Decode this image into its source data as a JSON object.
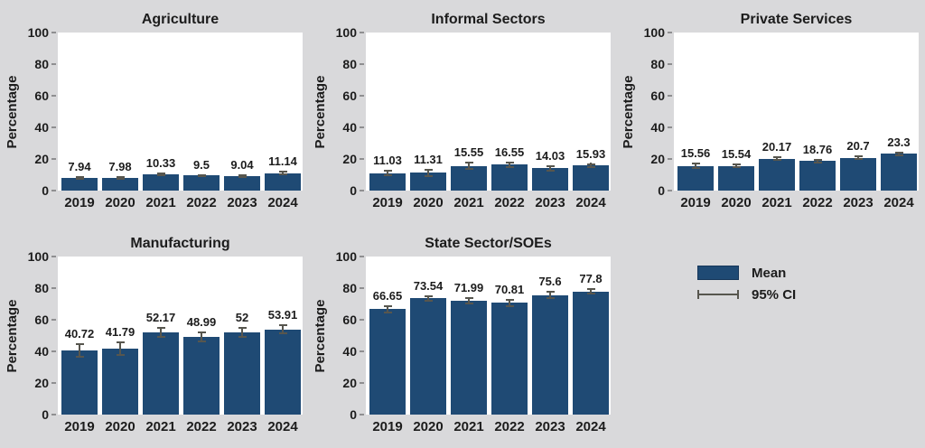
{
  "figure": {
    "background_color": "#d9d9db",
    "plot_background_color": "#ffffff",
    "bar_color": "#1f4a74",
    "error_bar_color": "#57564e",
    "text_color": "#1c1c1c"
  },
  "legend": {
    "mean_label": "Mean",
    "ci_label": "95% CI"
  },
  "chart_data": [
    {
      "type": "bar",
      "title": "Agriculture",
      "xlabel": "",
      "ylabel": "Percentage",
      "ylim": [
        0,
        100
      ],
      "yticks": [
        0,
        20,
        40,
        60,
        80,
        100
      ],
      "grid": false,
      "categories": [
        "2019",
        "2020",
        "2021",
        "2022",
        "2023",
        "2024"
      ],
      "values": [
        7.94,
        7.98,
        10.33,
        9.5,
        9.04,
        11.14
      ],
      "labels": [
        "7.94",
        "7.98",
        "10.33",
        "9.5",
        "9.04",
        "11.14"
      ],
      "ci95_halfwidth": [
        1,
        1,
        1,
        1,
        1,
        1.5
      ]
    },
    {
      "type": "bar",
      "title": "Informal Sectors",
      "xlabel": "",
      "ylabel": "Percentage",
      "ylim": [
        0,
        100
      ],
      "yticks": [
        0,
        20,
        40,
        60,
        80,
        100
      ],
      "grid": false,
      "categories": [
        "2019",
        "2020",
        "2021",
        "2022",
        "2023",
        "2024"
      ],
      "values": [
        11.03,
        11.31,
        15.55,
        16.55,
        14.03,
        15.93
      ],
      "labels": [
        "11.03",
        "11.31",
        "15.55",
        "16.55",
        "14.03",
        "15.93"
      ],
      "ci95_halfwidth": [
        2,
        2.5,
        2.5,
        2,
        2,
        1.5
      ]
    },
    {
      "type": "bar",
      "title": "Private Services",
      "xlabel": "",
      "ylabel": "Percentage",
      "ylim": [
        0,
        100
      ],
      "yticks": [
        0,
        20,
        40,
        60,
        80,
        100
      ],
      "grid": false,
      "categories": [
        "2019",
        "2020",
        "2021",
        "2022",
        "2023",
        "2024"
      ],
      "values": [
        15.56,
        15.54,
        20.17,
        18.76,
        20.7,
        23.3
      ],
      "labels": [
        "15.56",
        "15.54",
        "20.17",
        "18.76",
        "20.7",
        "23.3"
      ],
      "ci95_halfwidth": [
        2,
        1.5,
        1.5,
        1.5,
        1.5,
        1.5
      ]
    },
    {
      "type": "bar",
      "title": "Manufacturing",
      "xlabel": "",
      "ylabel": "Percentage",
      "ylim": [
        0,
        100
      ],
      "yticks": [
        0,
        20,
        40,
        60,
        80,
        100
      ],
      "grid": false,
      "categories": [
        "2019",
        "2020",
        "2021",
        "2022",
        "2023",
        "2024"
      ],
      "values": [
        40.72,
        41.79,
        52.17,
        48.99,
        52,
        53.91
      ],
      "labels": [
        "40.72",
        "41.79",
        "52.17",
        "48.99",
        "52",
        "53.91"
      ],
      "ci95_halfwidth": [
        4.5,
        4.5,
        3.5,
        3.5,
        3.5,
        3
      ]
    },
    {
      "type": "bar",
      "title": "State Sector/SOEs",
      "xlabel": "",
      "ylabel": "Percentage",
      "ylim": [
        0,
        100
      ],
      "yticks": [
        0,
        20,
        40,
        60,
        80,
        100
      ],
      "grid": false,
      "categories": [
        "2019",
        "2020",
        "2021",
        "2022",
        "2023",
        "2024"
      ],
      "values": [
        66.65,
        73.54,
        71.99,
        70.81,
        75.6,
        77.8
      ],
      "labels": [
        "66.65",
        "73.54",
        "71.99",
        "70.81",
        "75.6",
        "77.8"
      ],
      "ci95_halfwidth": [
        2.5,
        2,
        2.5,
        2.5,
        2.5,
        2
      ]
    }
  ]
}
